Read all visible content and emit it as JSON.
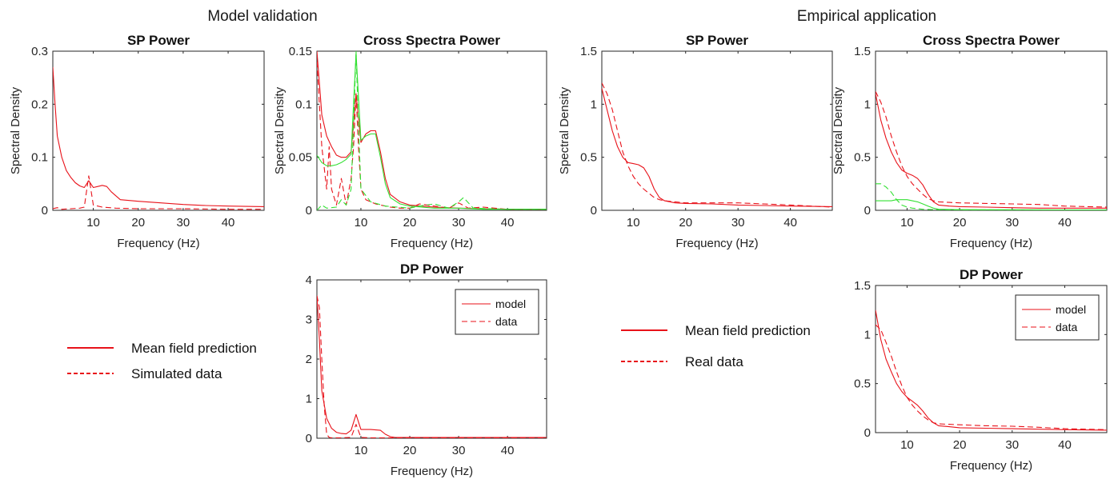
{
  "sections": [
    {
      "title": "Model validation"
    },
    {
      "title": "Empirical application"
    }
  ],
  "legends": [
    {
      "solid_label": "Mean field prediction",
      "dashed_label": "Simulated data"
    },
    {
      "solid_label": "Mean field prediction",
      "dashed_label": "Real data"
    }
  ],
  "colors": {
    "model": "#e8121a",
    "data": "#e8121a",
    "green": "#33e033"
  },
  "chart_data": [
    {
      "type": "line",
      "title": "SP Power",
      "xlabel": "Frequency (Hz)",
      "ylabel": "Spectral Density",
      "xlim": [
        1,
        48
      ],
      "ylim": [
        0,
        0.3
      ],
      "xticks": [
        10,
        20,
        30,
        40
      ],
      "yticks": [
        0,
        0.1,
        0.2,
        0.3
      ],
      "ytick_labels": [
        "0",
        "0.1",
        "0.2",
        "0.3"
      ],
      "series": [
        {
          "style": "solid",
          "color": "red",
          "x": [
            1,
            1.5,
            2,
            3,
            4,
            5,
            6,
            7,
            8,
            9,
            10,
            11,
            12,
            13,
            14,
            16,
            20,
            25,
            30,
            35,
            40,
            48
          ],
          "y": [
            0.27,
            0.2,
            0.14,
            0.1,
            0.075,
            0.062,
            0.052,
            0.046,
            0.043,
            0.056,
            0.043,
            0.045,
            0.047,
            0.045,
            0.035,
            0.02,
            0.017,
            0.014,
            0.011,
            0.009,
            0.008,
            0.007
          ]
        },
        {
          "style": "dashed",
          "color": "red",
          "x": [
            1,
            2,
            3,
            5,
            7,
            8,
            9,
            10,
            12,
            15,
            20,
            30,
            40,
            48
          ],
          "y": [
            0.003,
            0.005,
            0.002,
            0.003,
            0.004,
            0.006,
            0.065,
            0.01,
            0.006,
            0.004,
            0.003,
            0.003,
            0.002,
            0.002
          ]
        }
      ]
    },
    {
      "type": "line",
      "title": "Cross Spectra Power",
      "xlabel": "Frequency (Hz)",
      "ylabel": "Spectral Density",
      "xlim": [
        1,
        48
      ],
      "ylim": [
        0,
        0.15
      ],
      "xticks": [
        10,
        20,
        30,
        40
      ],
      "yticks": [
        0,
        0.05,
        0.1,
        0.15
      ],
      "ytick_labels": [
        "0",
        "0.05",
        "0.1",
        "0.15"
      ],
      "series": [
        {
          "style": "solid",
          "color": "red",
          "x": [
            1,
            1.5,
            2,
            3,
            4,
            5,
            6,
            7,
            8,
            9,
            10,
            11,
            12,
            13,
            14,
            15,
            16,
            18,
            20,
            25,
            30,
            40,
            48
          ],
          "y": [
            0.15,
            0.12,
            0.09,
            0.07,
            0.06,
            0.052,
            0.05,
            0.05,
            0.055,
            0.11,
            0.064,
            0.072,
            0.075,
            0.075,
            0.055,
            0.03,
            0.015,
            0.008,
            0.005,
            0.003,
            0.002,
            0.001,
            0.001
          ]
        },
        {
          "style": "dashed",
          "color": "red",
          "x": [
            1,
            1.5,
            2,
            3,
            3.5,
            4,
            5,
            6,
            7,
            8,
            8.5,
            9,
            9.5,
            10,
            11,
            12,
            13,
            14,
            15,
            16,
            18,
            20,
            22,
            25,
            28,
            30,
            32,
            35,
            40,
            48
          ],
          "y": [
            0.14,
            0.1,
            0.06,
            0.02,
            0.06,
            0.02,
            0.005,
            0.03,
            0.005,
            0.03,
            0.06,
            0.11,
            0.06,
            0.02,
            0.01,
            0.008,
            0.006,
            0.005,
            0.004,
            0.003,
            0.002,
            0.002,
            0.006,
            0.004,
            0.002,
            0.007,
            0.002,
            0.003,
            0.001,
            0.001
          ]
        },
        {
          "style": "solid",
          "color": "green",
          "x": [
            1,
            2,
            3,
            4,
            5,
            6,
            7,
            8,
            9,
            10,
            11,
            12,
            13,
            14,
            15,
            16,
            18,
            20,
            25,
            30,
            35,
            40,
            48
          ],
          "y": [
            0.052,
            0.045,
            0.042,
            0.042,
            0.043,
            0.045,
            0.048,
            0.053,
            0.148,
            0.066,
            0.07,
            0.072,
            0.072,
            0.05,
            0.025,
            0.012,
            0.006,
            0.004,
            0.002,
            0.002,
            0.001,
            0.001,
            0.001
          ]
        },
        {
          "style": "dashed",
          "color": "green",
          "x": [
            1,
            2,
            3,
            5,
            6,
            7,
            8,
            8.5,
            9,
            9.5,
            10,
            12,
            15,
            20,
            22,
            25,
            28,
            30,
            31,
            33,
            40,
            48
          ],
          "y": [
            0.0,
            0.005,
            0.002,
            0.003,
            0.01,
            0.005,
            0.02,
            0.08,
            0.15,
            0.08,
            0.02,
            0.008,
            0.004,
            0.002,
            0.004,
            0.006,
            0.002,
            0.008,
            0.012,
            0.002,
            0.001,
            0.001
          ]
        }
      ]
    },
    {
      "type": "line",
      "title": "DP Power",
      "xlabel": "Frequency (Hz)",
      "ylabel": "",
      "xlim": [
        1,
        48
      ],
      "ylim": [
        0,
        4
      ],
      "xticks": [
        10,
        20,
        30,
        40
      ],
      "yticks": [
        0,
        1,
        2,
        3,
        4
      ],
      "ytick_labels": [
        "0",
        "1",
        "2",
        "3",
        "4"
      ],
      "legend": {
        "position": "top-right",
        "entries": [
          "model",
          "data"
        ]
      },
      "series": [
        {
          "style": "solid",
          "color": "red",
          "name": "model",
          "x": [
            1,
            1.5,
            2,
            3,
            4,
            5,
            6,
            7,
            8,
            9,
            10,
            11,
            12,
            14,
            15,
            16,
            17,
            20,
            30,
            40,
            48
          ],
          "y": [
            3.6,
            2.5,
            1.2,
            0.5,
            0.25,
            0.15,
            0.12,
            0.11,
            0.2,
            0.6,
            0.22,
            0.22,
            0.22,
            0.2,
            0.1,
            0.04,
            0.02,
            0.02,
            0.02,
            0.02,
            0.02
          ]
        },
        {
          "style": "dashed",
          "color": "red",
          "name": "data",
          "x": [
            1,
            1.5,
            2,
            2.5,
            3,
            3.5,
            4,
            6,
            8,
            9,
            10,
            12,
            15,
            20,
            30,
            40,
            48
          ],
          "y": [
            3.6,
            3.3,
            2.0,
            0.8,
            0.1,
            0.02,
            0.01,
            0.01,
            0.02,
            0.35,
            0.02,
            0.01,
            0.01,
            0.01,
            0.01,
            0.01,
            0.01
          ]
        }
      ]
    },
    {
      "type": "line",
      "title": "SP Power",
      "xlabel": "Frequency (Hz)",
      "ylabel": "Spectral Density",
      "xlim": [
        4,
        48
      ],
      "ylim": [
        0,
        1.5
      ],
      "xticks": [
        10,
        20,
        30,
        40
      ],
      "yticks": [
        0,
        0.5,
        1,
        1.5
      ],
      "ytick_labels": [
        "0",
        "0.5",
        "1",
        "1.5"
      ],
      "series": [
        {
          "style": "solid",
          "color": "red",
          "x": [
            4,
            5,
            6,
            7,
            8,
            9,
            10,
            11,
            12,
            13,
            14,
            15,
            16,
            18,
            20,
            25,
            30,
            35,
            40,
            48
          ],
          "y": [
            1.15,
            0.95,
            0.75,
            0.6,
            0.5,
            0.45,
            0.44,
            0.43,
            0.4,
            0.32,
            0.2,
            0.12,
            0.09,
            0.07,
            0.065,
            0.06,
            0.05,
            0.045,
            0.04,
            0.035
          ]
        },
        {
          "style": "dashed",
          "color": "red",
          "x": [
            4,
            5,
            6,
            7,
            8,
            9,
            10,
            11,
            12,
            13,
            14,
            15,
            16,
            18,
            20,
            25,
            30,
            35,
            40,
            48
          ],
          "y": [
            1.2,
            1.1,
            0.95,
            0.75,
            0.55,
            0.42,
            0.32,
            0.25,
            0.2,
            0.16,
            0.12,
            0.1,
            0.09,
            0.08,
            0.07,
            0.07,
            0.07,
            0.06,
            0.05,
            0.03
          ]
        }
      ]
    },
    {
      "type": "line",
      "title": "Cross Spectra Power",
      "xlabel": "Frequency (Hz)",
      "ylabel": "Spectral Density",
      "xlim": [
        4,
        48
      ],
      "ylim": [
        0,
        1.5
      ],
      "xticks": [
        10,
        20,
        30,
        40
      ],
      "yticks": [
        0,
        0.5,
        1,
        1.5
      ],
      "ytick_labels": [
        "0",
        "0.5",
        "1",
        "1.5"
      ],
      "series": [
        {
          "style": "solid",
          "color": "red",
          "x": [
            4,
            5,
            6,
            7,
            8,
            9,
            10,
            11,
            12,
            13,
            14,
            15,
            16,
            18,
            20,
            25,
            30,
            35,
            40,
            48
          ],
          "y": [
            1.1,
            0.85,
            0.68,
            0.55,
            0.45,
            0.38,
            0.35,
            0.33,
            0.3,
            0.24,
            0.15,
            0.08,
            0.05,
            0.04,
            0.035,
            0.03,
            0.025,
            0.02,
            0.02,
            0.02
          ]
        },
        {
          "style": "dashed",
          "color": "red",
          "x": [
            4,
            5,
            6,
            7,
            8,
            9,
            10,
            11,
            12,
            13,
            14,
            15,
            16,
            18,
            20,
            25,
            30,
            35,
            40,
            48
          ],
          "y": [
            1.12,
            1.02,
            0.88,
            0.7,
            0.55,
            0.42,
            0.32,
            0.25,
            0.2,
            0.15,
            0.11,
            0.09,
            0.08,
            0.075,
            0.07,
            0.065,
            0.06,
            0.055,
            0.04,
            0.03
          ]
        },
        {
          "style": "solid",
          "color": "green",
          "x": [
            4,
            5,
            6,
            7,
            8,
            9,
            10,
            11,
            12,
            13,
            14,
            15,
            16,
            18,
            20,
            25,
            30,
            40,
            48
          ],
          "y": [
            0.09,
            0.09,
            0.09,
            0.09,
            0.1,
            0.1,
            0.1,
            0.09,
            0.08,
            0.06,
            0.04,
            0.02,
            0.01,
            0.008,
            0.006,
            0.005,
            0.005,
            0.004,
            0.004
          ]
        },
        {
          "style": "dashed",
          "color": "green",
          "x": [
            4,
            5,
            6,
            7,
            8,
            9,
            10,
            11,
            12,
            13,
            14,
            16,
            18,
            20,
            25,
            30,
            40,
            48
          ],
          "y": [
            0.25,
            0.25,
            0.22,
            0.17,
            0.1,
            0.05,
            0.03,
            0.02,
            0.015,
            0.01,
            0.008,
            0.006,
            0.005,
            0.005,
            0.005,
            0.004,
            0.004,
            0.004
          ]
        }
      ]
    },
    {
      "type": "line",
      "title": "DP Power",
      "xlabel": "Frequency (Hz)",
      "ylabel": "",
      "xlim": [
        4,
        48
      ],
      "ylim": [
        0,
        1.5
      ],
      "xticks": [
        10,
        20,
        30,
        40
      ],
      "yticks": [
        0,
        0.5,
        1,
        1.5
      ],
      "ytick_labels": [
        "0",
        "0.5",
        "1",
        "1.5"
      ],
      "legend": {
        "position": "top-right",
        "entries": [
          "model",
          "data"
        ]
      },
      "series": [
        {
          "style": "solid",
          "color": "red",
          "name": "model",
          "x": [
            4,
            5,
            6,
            7,
            8,
            9,
            10,
            11,
            12,
            13,
            14,
            15,
            16,
            18,
            20,
            25,
            30,
            35,
            40,
            48
          ],
          "y": [
            1.25,
            0.95,
            0.75,
            0.62,
            0.5,
            0.42,
            0.36,
            0.32,
            0.28,
            0.22,
            0.15,
            0.1,
            0.07,
            0.06,
            0.05,
            0.045,
            0.04,
            0.035,
            0.03,
            0.025
          ]
        },
        {
          "style": "dashed",
          "color": "red",
          "name": "data",
          "x": [
            4,
            5,
            6,
            7,
            8,
            9,
            10,
            11,
            12,
            13,
            14,
            15,
            16,
            18,
            20,
            25,
            30,
            35,
            40,
            48
          ],
          "y": [
            1.1,
            1.05,
            0.92,
            0.78,
            0.62,
            0.48,
            0.36,
            0.28,
            0.22,
            0.17,
            0.13,
            0.1,
            0.09,
            0.085,
            0.08,
            0.07,
            0.065,
            0.055,
            0.04,
            0.03
          ]
        }
      ]
    }
  ]
}
